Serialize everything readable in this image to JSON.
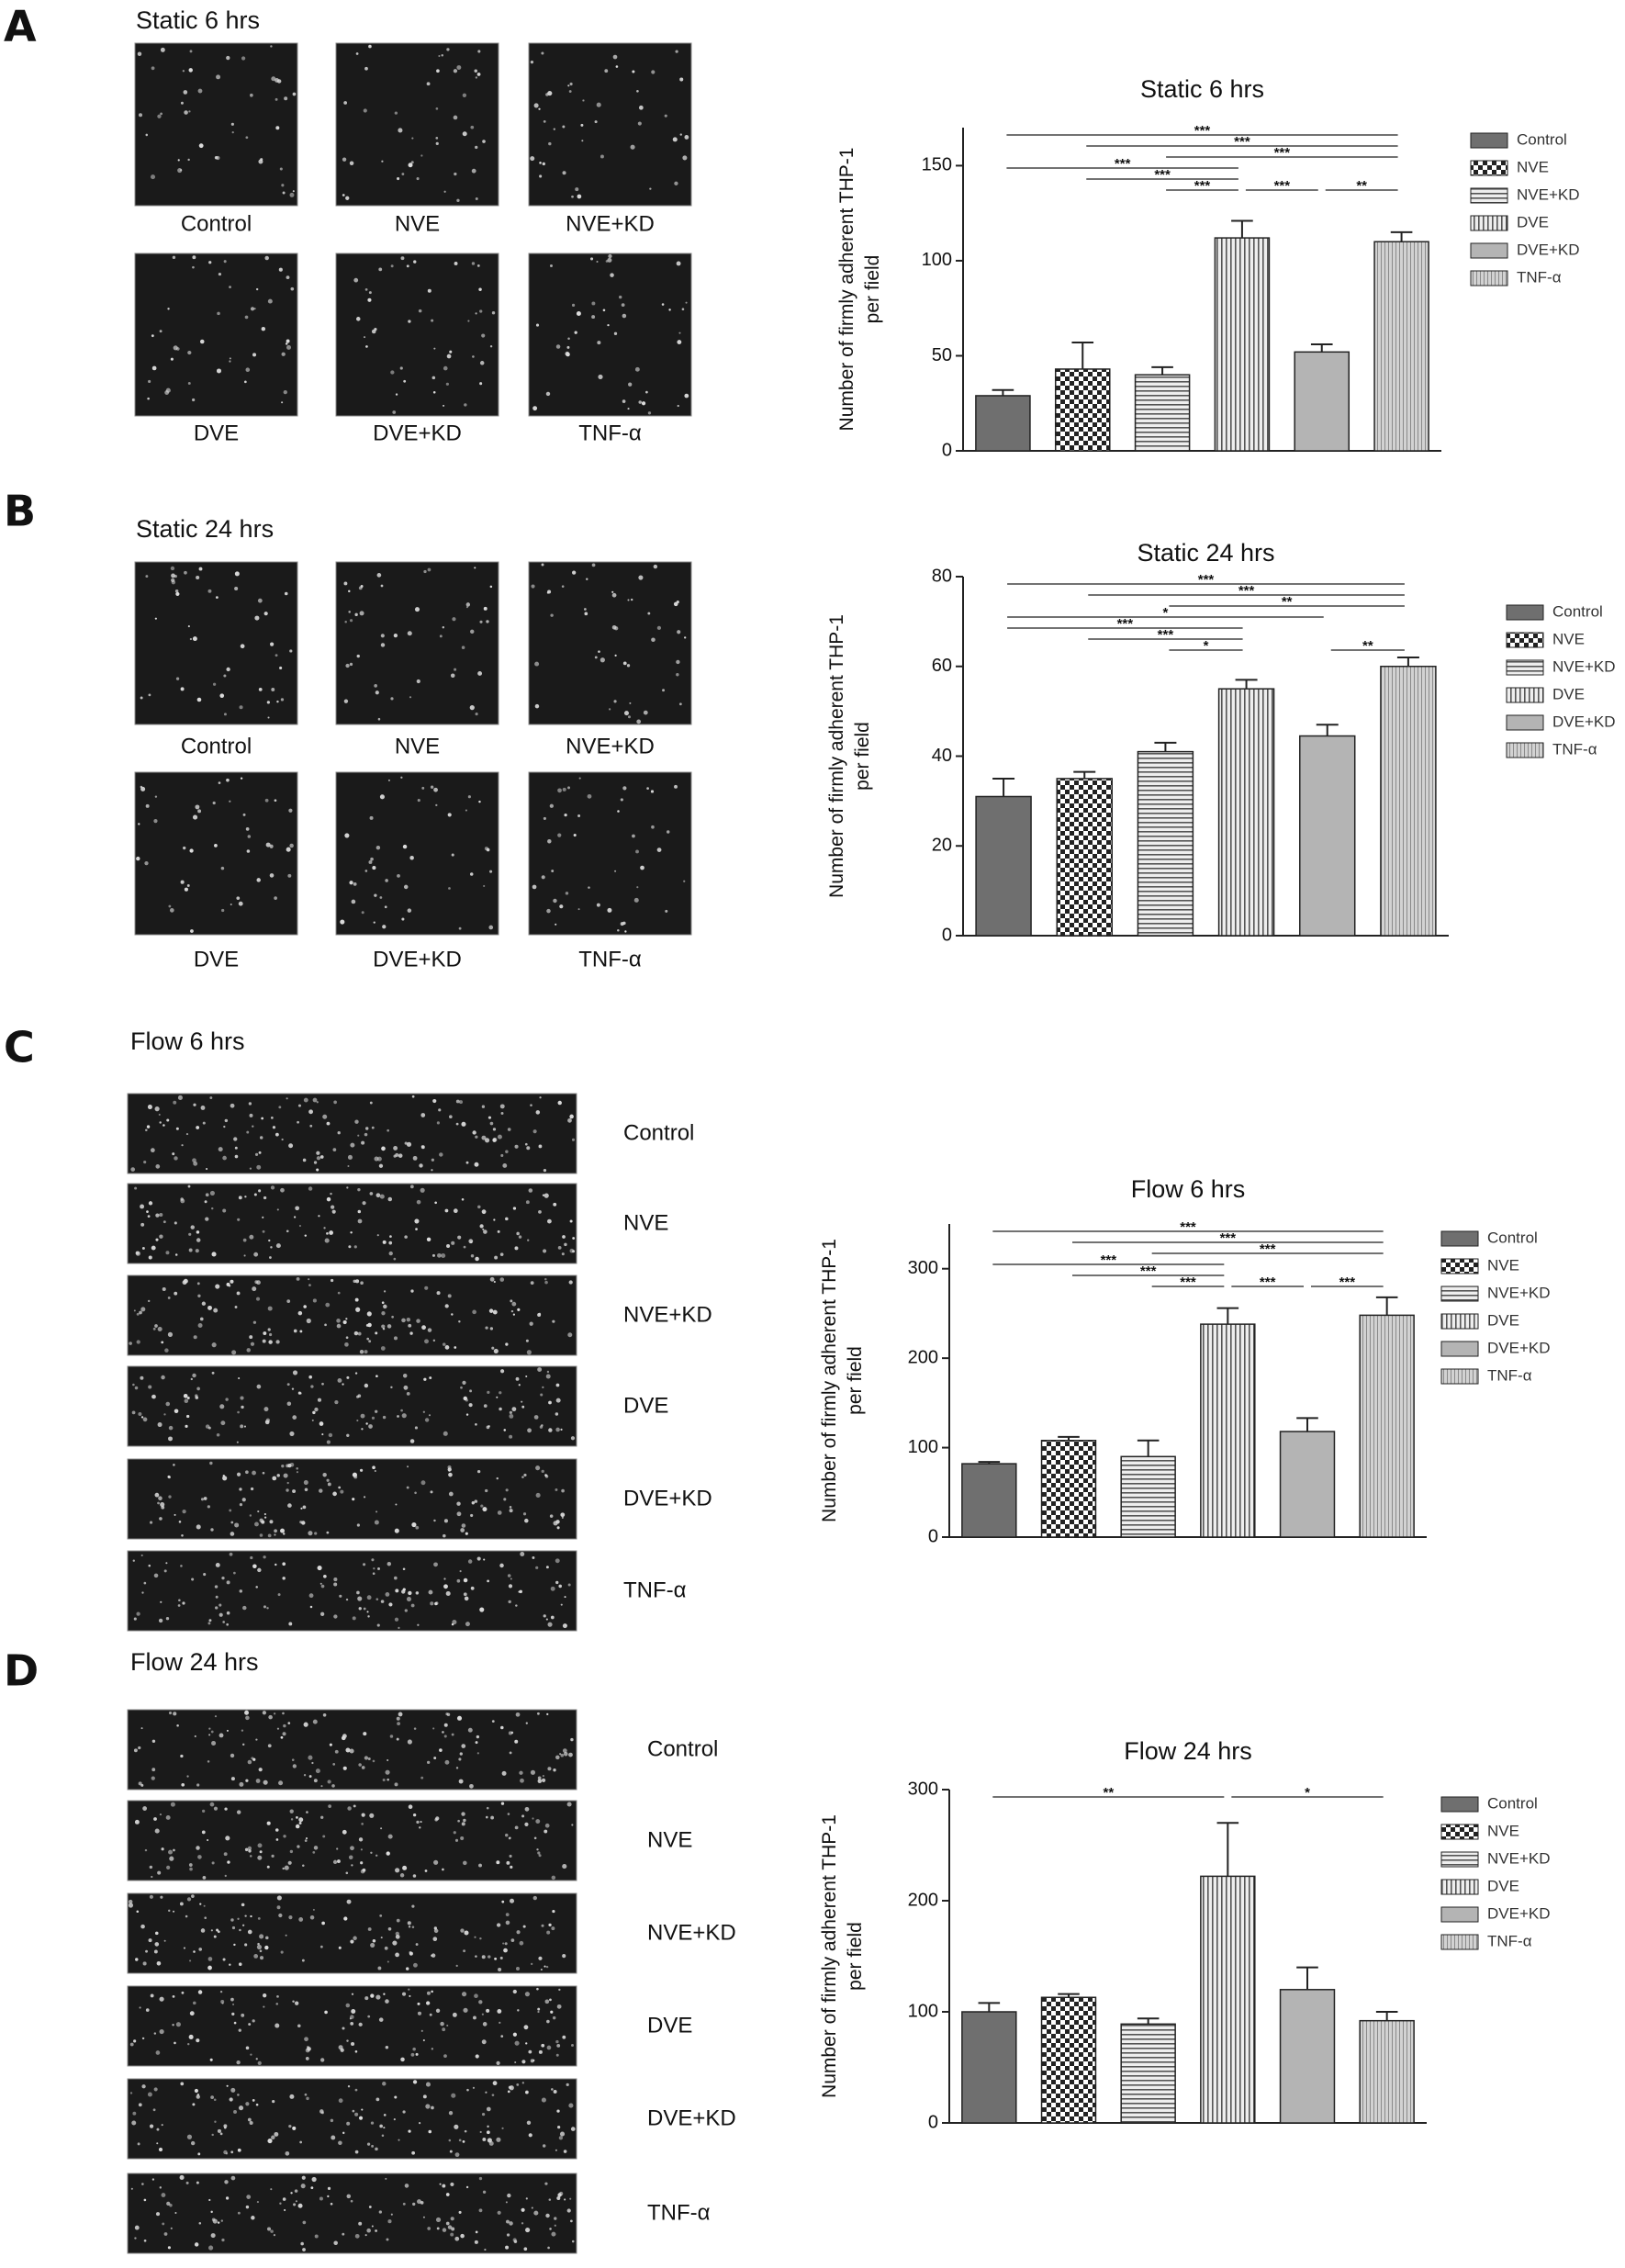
{
  "panels": [
    {
      "letter": "A",
      "title": "Static 6 hrs",
      "labels": [
        "Control",
        "NVE",
        "NVE+KD",
        "DVE",
        "DVE+KD",
        "TNF-α"
      ]
    },
    {
      "letter": "B",
      "title": "Static 24 hrs",
      "labels": [
        "Control",
        "NVE",
        "NVE+KD",
        "DVE",
        "DVE+KD",
        "TNF-α"
      ]
    },
    {
      "letter": "C",
      "title": "Flow 6 hrs",
      "labels": [
        "Control",
        "NVE",
        "NVE+KD",
        "DVE",
        "DVE+KD",
        "TNF-α"
      ]
    },
    {
      "letter": "D",
      "title": "Flow 24 hrs",
      "labels": [
        "Control",
        "NVE",
        "NVE+KD",
        "DVE",
        "DVE+KD",
        "TNF-α"
      ]
    }
  ],
  "chart_data": [
    {
      "type": "bar",
      "title": "Static 6 hrs",
      "ylabel": [
        "Number of firmly adherent THP-1",
        "per field"
      ],
      "categories": [
        "Control",
        "NVE",
        "NVE+KD",
        "DVE",
        "DVE+KD",
        "TNF-α"
      ],
      "values": [
        29,
        43,
        40,
        112,
        52,
        110
      ],
      "errors": [
        3,
        14,
        4,
        9,
        4,
        5
      ],
      "ylim": [
        0,
        170
      ],
      "yticks": [
        0,
        50,
        100,
        150
      ],
      "annotations": [
        {
          "from": 2,
          "to": 3,
          "label": "***"
        },
        {
          "from": 3,
          "to": 4,
          "label": "***"
        },
        {
          "from": 4,
          "to": 5,
          "label": "**"
        },
        {
          "from": 1,
          "to": 3,
          "label": "***"
        },
        {
          "from": 0,
          "to": 3,
          "label": "***"
        },
        {
          "from": 2,
          "to": 5,
          "label": "***"
        },
        {
          "from": 1,
          "to": 5,
          "label": "***"
        },
        {
          "from": 0,
          "to": 5,
          "label": "***"
        }
      ]
    },
    {
      "type": "bar",
      "title": "Static 24 hrs",
      "ylabel": [
        "Number of firmly adherent THP-1",
        "per field"
      ],
      "categories": [
        "Control",
        "NVE",
        "NVE+KD",
        "DVE",
        "DVE+KD",
        "TNF-α"
      ],
      "values": [
        31,
        35,
        41,
        55,
        44.5,
        60
      ],
      "errors": [
        4,
        1.5,
        2,
        2,
        2.5,
        2
      ],
      "ylim": [
        0,
        80
      ],
      "yticks": [
        0,
        20,
        40,
        60,
        80
      ],
      "annotations": [
        {
          "from": 2,
          "to": 3,
          "label": "*"
        },
        {
          "from": 1,
          "to": 3,
          "label": "***"
        },
        {
          "from": 0,
          "to": 3,
          "label": "***"
        },
        {
          "from": 4,
          "to": 5,
          "label": "**"
        },
        {
          "from": 0,
          "to": 4,
          "label": "*"
        },
        {
          "from": 2,
          "to": 5,
          "label": "**"
        },
        {
          "from": 1,
          "to": 5,
          "label": "***"
        },
        {
          "from": 0,
          "to": 5,
          "label": "***"
        }
      ]
    },
    {
      "type": "bar",
      "title": "Flow 6 hrs",
      "ylabel": [
        "Number of firmly adherent THP-1",
        "per field"
      ],
      "categories": [
        "Control",
        "NVE",
        "NVE+KD",
        "DVE",
        "DVE+KD",
        "TNF-α"
      ],
      "values": [
        82,
        108,
        90,
        238,
        118,
        248
      ],
      "errors": [
        2,
        4,
        18,
        18,
        15,
        20
      ],
      "ylim": [
        0,
        350
      ],
      "yticks": [
        0,
        100,
        200,
        300
      ],
      "annotations": [
        {
          "from": 2,
          "to": 3,
          "label": "***"
        },
        {
          "from": 3,
          "to": 4,
          "label": "***"
        },
        {
          "from": 4,
          "to": 5,
          "label": "***"
        },
        {
          "from": 1,
          "to": 3,
          "label": "***"
        },
        {
          "from": 0,
          "to": 3,
          "label": "***"
        },
        {
          "from": 2,
          "to": 5,
          "label": "***"
        },
        {
          "from": 1,
          "to": 5,
          "label": "***"
        },
        {
          "from": 0,
          "to": 5,
          "label": "***"
        }
      ]
    },
    {
      "type": "bar",
      "title": "Flow 24 hrs",
      "ylabel": [
        "Number of firmly adherent THP-1",
        "per field"
      ],
      "categories": [
        "Control",
        "NVE",
        "NVE+KD",
        "DVE",
        "DVE+KD",
        "TNF-α"
      ],
      "values": [
        100,
        113,
        89,
        222,
        120,
        92
      ],
      "errors": [
        8,
        3,
        5,
        48,
        20,
        8
      ],
      "ylim": [
        0,
        300
      ],
      "yticks": [
        0,
        100,
        200,
        300
      ],
      "annotations": [
        {
          "from": 0,
          "to": 3,
          "label": "**"
        },
        {
          "from": 3,
          "to": 5,
          "label": "*"
        }
      ]
    }
  ]
}
